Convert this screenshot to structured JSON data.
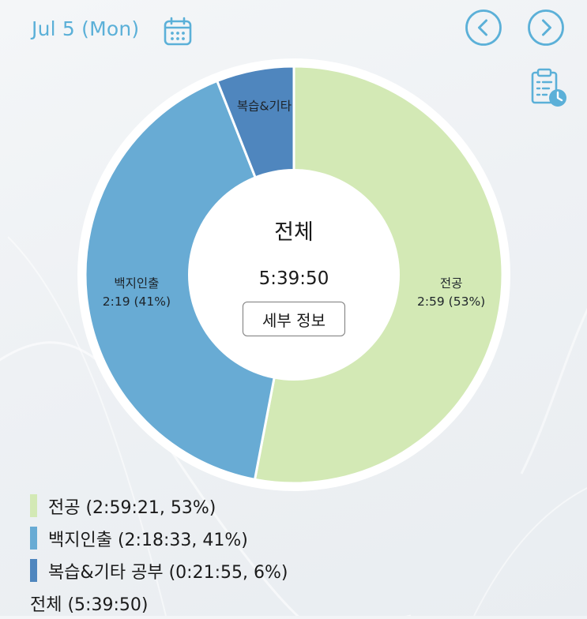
{
  "header": {
    "date_label": "Jul 5 (Mon)",
    "calendar_icon": "calendar-icon",
    "prev_icon": "chevron-left-icon",
    "next_icon": "chevron-right-icon",
    "history_icon": "clipboard-clock-icon"
  },
  "colors": {
    "accent": "#5bb0d8",
    "slice_major": "#d3e9b5",
    "slice_recall": "#68abd4",
    "slice_review": "#4f86be"
  },
  "donut": {
    "center_title": "전체",
    "center_time": "5:39:50",
    "details_button_label": "세부 정보",
    "slice_labels": [
      {
        "name": "전공",
        "value": "2:59 (53%)"
      },
      {
        "name": "백지인출",
        "value": "2:19 (41%)"
      },
      {
        "name": "복습&기타",
        "value": ""
      }
    ]
  },
  "legend": {
    "items": [
      {
        "label": "전공 (2:59:21, 53%)",
        "color": "#d3e9b5"
      },
      {
        "label": "백지인출 (2:18:33, 41%)",
        "color": "#68abd4"
      },
      {
        "label": "복습&기타 공부 (0:21:55, 6%)",
        "color": "#4f86be"
      }
    ],
    "total_label": "전체 (5:39:50)"
  },
  "chart_data": {
    "type": "pie",
    "categories": [
      "전공",
      "백지인출",
      "복습&기타 공부"
    ],
    "values": [
      53,
      41,
      6
    ],
    "durations": [
      "2:59:21",
      "2:18:33",
      "0:21:55"
    ],
    "total": "5:39:50",
    "title": "전체"
  }
}
